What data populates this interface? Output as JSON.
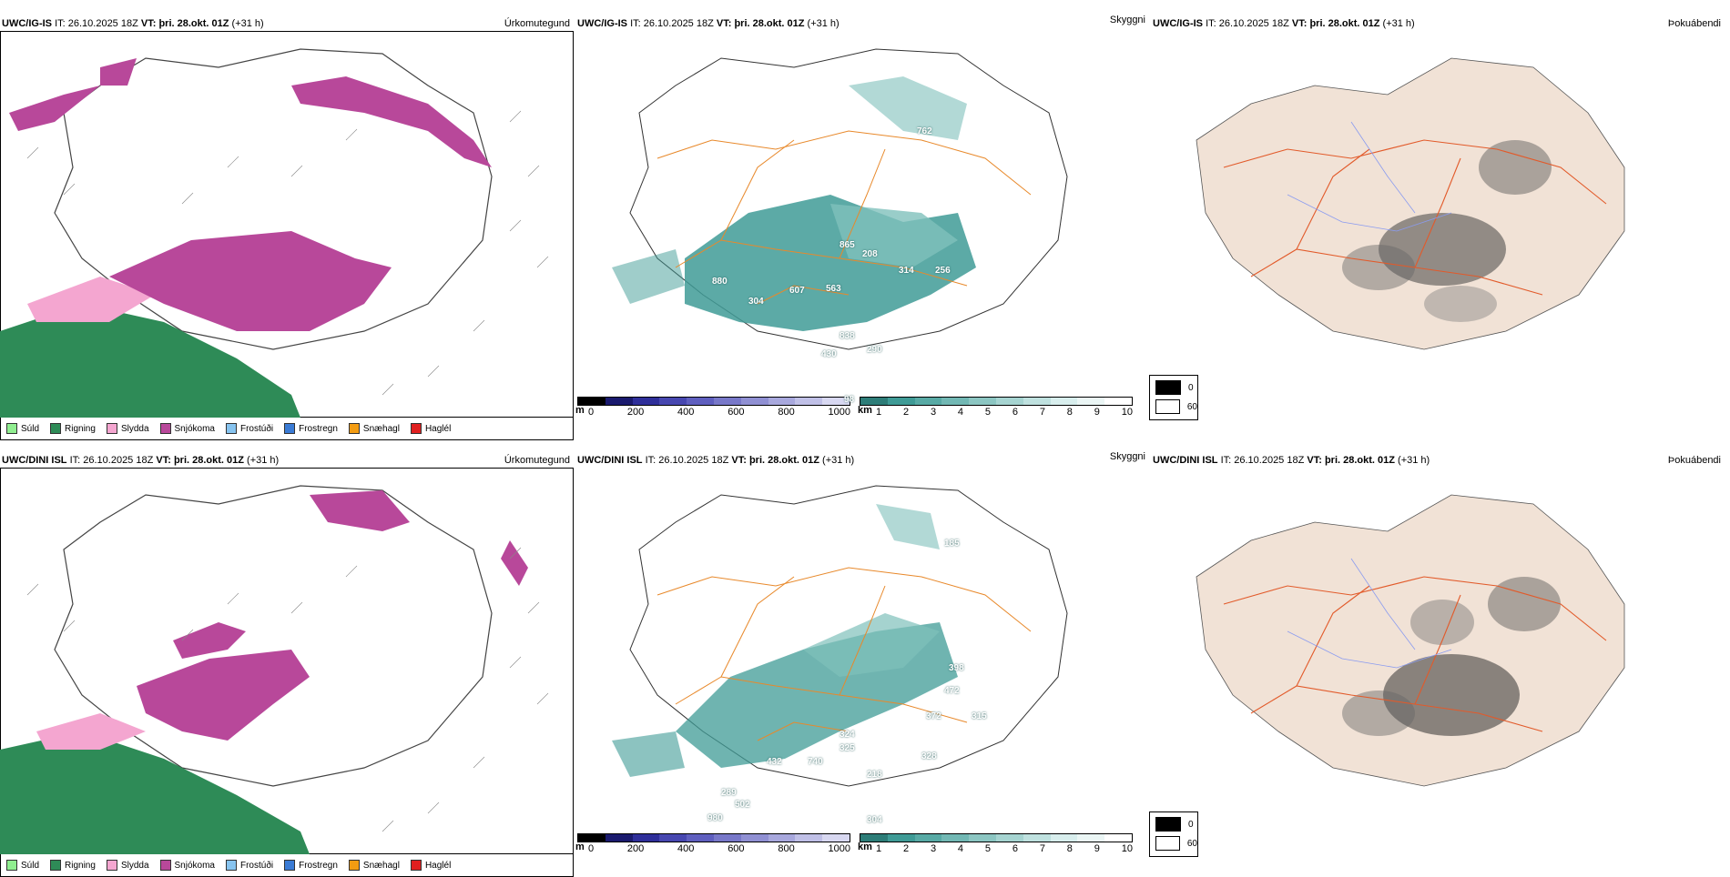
{
  "rows": [
    {
      "model": "UWC/IG-IS",
      "it_label": "IT:",
      "it_value": "26.10.2025 18Z",
      "vt_label": "VT:",
      "vt_value": "þri. 28.okt. 01Z",
      "lead": "(+31 h)"
    },
    {
      "model": "UWC/DINI ISL",
      "it_label": "IT:",
      "it_value": "26.10.2025 18Z",
      "vt_label": "VT:",
      "vt_value": "þri. 28.okt. 01Z",
      "lead": "(+31 h)"
    }
  ],
  "panel_titles": {
    "precip_type": "Úrkomutegund",
    "cloud": "Skyggni",
    "fog": "Þokuábendi"
  },
  "precip_legend": [
    {
      "label": "Súld",
      "color": "#90ee90"
    },
    {
      "label": "Rigning",
      "color": "#2e8b57"
    },
    {
      "label": "Slydda",
      "color": "#f4a6d0"
    },
    {
      "label": "Snjókoma",
      "color": "#b8489a"
    },
    {
      "label": "Frostúði",
      "color": "#87c4f0"
    },
    {
      "label": "Frostregn",
      "color": "#3a7bd5"
    },
    {
      "label": "Snæhagl",
      "color": "#f39c12"
    },
    {
      "label": "Haglél",
      "color": "#e02020"
    }
  ],
  "cloud_base_bar": {
    "unit": "m",
    "ticks": [
      "0",
      "200",
      "400",
      "600",
      "800",
      "1000"
    ]
  },
  "visibility_bar": {
    "unit": "km",
    "ticks": [
      "1",
      "2",
      "3",
      "4",
      "5",
      "6",
      "7",
      "8",
      "9",
      "10"
    ]
  },
  "fog_legend": {
    "top": "0",
    "bottom": "60"
  },
  "cloud_labels_top": [
    "865",
    "880",
    "607",
    "563",
    "304",
    "838",
    "290",
    "430",
    "762",
    "256",
    "314",
    "208",
    "98"
  ],
  "cloud_labels_bottom": [
    "980",
    "502",
    "289",
    "432",
    "740",
    "324",
    "325",
    "328",
    "218",
    "304",
    "185",
    "472",
    "398",
    "372",
    "315"
  ],
  "colors": {
    "snow": "#b8489a",
    "rain": "#2e8b57",
    "sleet": "#f4a6d0",
    "teal": "#3f9b96",
    "roads": "#e8892b",
    "land_fog": "#f1e2d6",
    "roads_fog": "#e25a2a"
  }
}
